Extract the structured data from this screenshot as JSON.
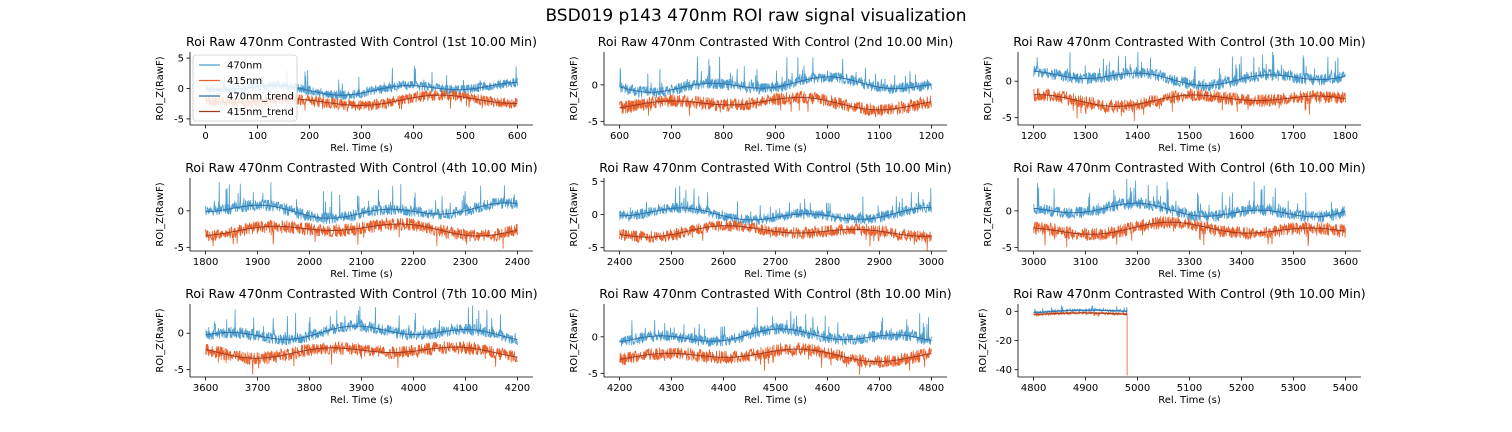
{
  "title": "BSD019 p143 470nm ROI  raw signal visualization",
  "colors": {
    "s470": "#4e9fcf",
    "s415": "#e8612c",
    "trend470": "#2f6fa8",
    "trend415": "#a0391e"
  },
  "legend": {
    "placement": "upper-left of first panel",
    "entries": [
      "470nm",
      "415nm",
      "470nm_trend",
      "415nm_trend"
    ]
  },
  "chart_data": [
    {
      "type": "line",
      "title": "Roi Raw 470nm Contrasted With Control (1st 10.00 Min)",
      "xlabel": "Rel. Time (s)",
      "ylabel": "ROI_Z(RawF)",
      "xlim": [
        -30,
        630
      ],
      "ylim": [
        -6,
        6
      ],
      "xticks": [
        0,
        100,
        200,
        300,
        400,
        500,
        600
      ],
      "yticks": [
        -5,
        0,
        5
      ],
      "x_range": [
        0,
        600
      ],
      "mean470": 0,
      "mean415": -2,
      "legend": true
    },
    {
      "type": "line",
      "title": "Roi Raw 470nm Contrasted With Control (2nd 10.00 Min)",
      "xlabel": "Rel. Time (s)",
      "ylabel": "ROI_Z(RawF)",
      "xlim": [
        570,
        1230
      ],
      "ylim": [
        -5.5,
        4.5
      ],
      "xticks": [
        600,
        700,
        800,
        900,
        1000,
        1100,
        1200
      ],
      "yticks": [
        -5,
        0
      ],
      "x_range": [
        600,
        1200
      ],
      "mean470": 0,
      "mean415": -2.5
    },
    {
      "type": "line",
      "title": "Roi Raw 470nm Contrasted With Control (3th 10.00 Min)",
      "xlabel": "Rel. Time (s)",
      "ylabel": "ROI_Z(RawF)",
      "xlim": [
        1170,
        1830
      ],
      "ylim": [
        -6,
        4
      ],
      "xticks": [
        1200,
        1300,
        1400,
        1500,
        1600,
        1700,
        1800
      ],
      "yticks": [
        -5,
        0
      ],
      "x_range": [
        1200,
        1800
      ],
      "mean470": 0.5,
      "mean415": -2.5
    },
    {
      "type": "line",
      "title": "Roi Raw 470nm Contrasted With Control (4th 10.00 Min)",
      "xlabel": "Rel. Time (s)",
      "ylabel": "ROI_Z(RawF)",
      "xlim": [
        1770,
        2430
      ],
      "ylim": [
        -5.5,
        4.5
      ],
      "xticks": [
        1800,
        1900,
        2000,
        2100,
        2200,
        2300,
        2400
      ],
      "yticks": [
        -5,
        0
      ],
      "x_range": [
        1800,
        2400
      ],
      "mean470": 0,
      "mean415": -2.5
    },
    {
      "type": "line",
      "title": "Roi Raw 470nm Contrasted With Control (5th 10.00 Min)",
      "xlabel": "Rel. Time (s)",
      "ylabel": "ROI_Z(RawF)",
      "xlim": [
        2370,
        3030
      ],
      "ylim": [
        -5.5,
        5.5
      ],
      "xticks": [
        2400,
        2500,
        2600,
        2700,
        2800,
        2900,
        3000
      ],
      "yticks": [
        -5,
        0,
        5
      ],
      "x_range": [
        2400,
        3000
      ],
      "mean470": 0,
      "mean415": -2.5
    },
    {
      "type": "line",
      "title": "Roi Raw 470nm Contrasted With Control (6th 10.00 Min)",
      "xlabel": "Rel. Time (s)",
      "ylabel": "ROI_Z(RawF)",
      "xlim": [
        2970,
        3630
      ],
      "ylim": [
        -5.5,
        4.5
      ],
      "xticks": [
        3000,
        3100,
        3200,
        3300,
        3400,
        3500,
        3600
      ],
      "yticks": [
        -5,
        0
      ],
      "x_range": [
        3000,
        3600
      ],
      "mean470": 0,
      "mean415": -2.5
    },
    {
      "type": "line",
      "title": "Roi Raw 470nm Contrasted With Control (7th 10.00 Min)",
      "xlabel": "Rel. Time (s)",
      "ylabel": "ROI_Z(RawF)",
      "xlim": [
        3570,
        4230
      ],
      "ylim": [
        -6,
        4
      ],
      "xticks": [
        3600,
        3700,
        3800,
        3900,
        4000,
        4100,
        4200
      ],
      "yticks": [
        -5,
        0
      ],
      "x_range": [
        3600,
        4200
      ],
      "mean470": 0,
      "mean415": -2.5
    },
    {
      "type": "line",
      "title": "Roi Raw 470nm Contrasted With Control (8th 10.00 Min)",
      "xlabel": "Rel. Time (s)",
      "ylabel": "ROI_Z(RawF)",
      "xlim": [
        4170,
        4830
      ],
      "ylim": [
        -5.5,
        4.5
      ],
      "xticks": [
        4200,
        4300,
        4400,
        4500,
        4600,
        4700,
        4800
      ],
      "yticks": [
        -5,
        0
      ],
      "x_range": [
        4200,
        4800
      ],
      "mean470": 0,
      "mean415": -2.5
    },
    {
      "type": "line",
      "title": "Roi Raw 470nm Contrasted With Control (9th 10.00 Min)",
      "xlabel": "Rel. Time (s)",
      "ylabel": "ROI_Z(RawF)",
      "xlim": [
        4770,
        5430
      ],
      "ylim": [
        -45,
        5
      ],
      "xticks": [
        4800,
        4900,
        5000,
        5100,
        5200,
        5300,
        5400
      ],
      "yticks": [
        -40,
        -20,
        0
      ],
      "x_range": [
        4800,
        4980
      ],
      "mean470": 0,
      "mean415": -2,
      "drop_at": 4980,
      "drop_to": -44
    }
  ]
}
